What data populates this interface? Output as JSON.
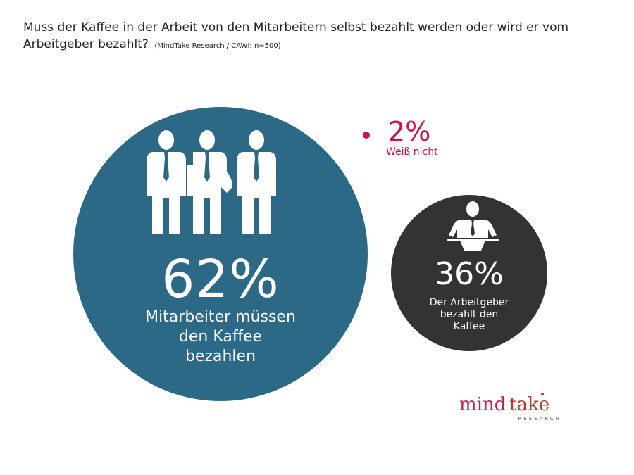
{
  "title": {
    "main": "Muss der Kaffee in der Arbeit von den Mitarbeitern selbst bezahlt werden oder wird er vom Arbeitgeber bezahlt?",
    "source": "(MindTake Research / CAWI: n=500)"
  },
  "chart_data": {
    "type": "bubble",
    "title": "Muss der Kaffee in der Arbeit von den Mitarbeitern selbst bezahlt werden oder wird er vom Arbeitgeber bezahlt?",
    "categories": [
      "Mitarbeiter müssen den Kaffee bezahlen",
      "Der Arbeitgeber bezahlt den Kaffee",
      "Weiß nicht"
    ],
    "values": [
      62,
      36,
      2
    ],
    "unit": "%",
    "items": [
      {
        "value_label": "62%",
        "lines": [
          "Mitarbeiter müssen",
          "den Kaffee",
          "bezahlen"
        ],
        "color": "#2b6987",
        "icon": "three-businessmen-icon"
      },
      {
        "value_label": "36%",
        "lines": [
          "Der Arbeitgeber",
          "bezahlt den",
          "Kaffee"
        ],
        "color": "#333333",
        "icon": "boss-at-desk-icon"
      },
      {
        "value_label": "2%",
        "lines": [
          "Weiß nicht"
        ],
        "color": "#d0104c"
      }
    ]
  },
  "brand": {
    "name_part1": "mind",
    "name_part2": "take",
    "tagline": "RESEARCH",
    "color_mind": "#c41f4e",
    "color_take": "#c0362c"
  }
}
